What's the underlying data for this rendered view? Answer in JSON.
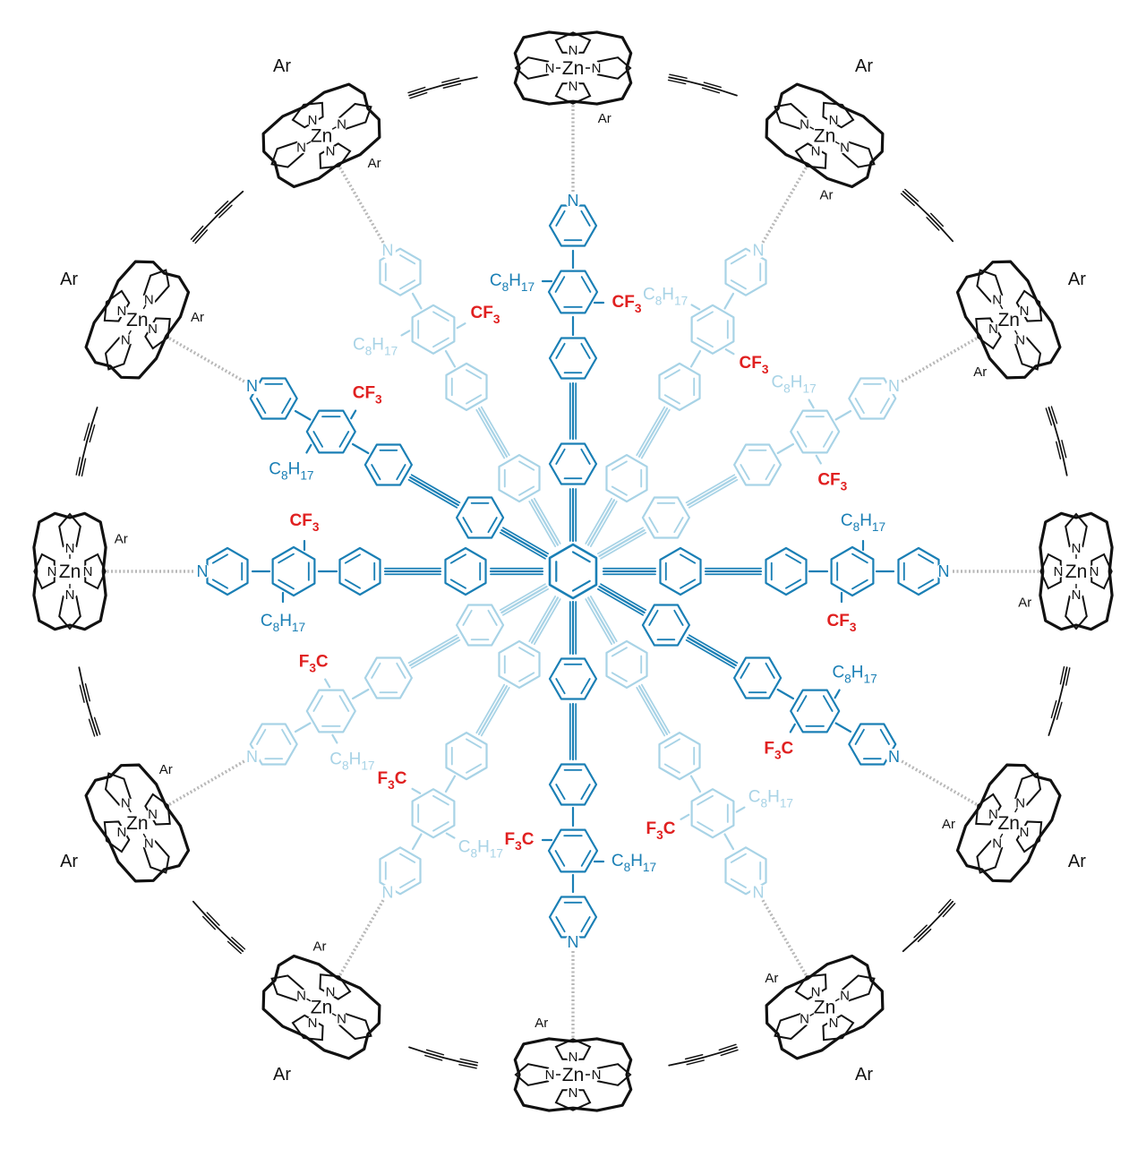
{
  "colors": {
    "porphyrin": "#111111",
    "spoke_dark": "#1a7fb5",
    "spoke_light": "#a8d3e6",
    "cf3": "#e02020",
    "coordination": "#b8b8b8"
  },
  "labels": {
    "ar": "Ar",
    "zn": "Zn",
    "n": "N",
    "cf3": "CF3",
    "f3c": "F3C",
    "octyl": "C8H17"
  },
  "ring": {
    "porphyrin_count": 12,
    "linker": "butadiyne"
  },
  "template": {
    "core": "hexa-substituted benzene",
    "spoke_count": 12
  }
}
